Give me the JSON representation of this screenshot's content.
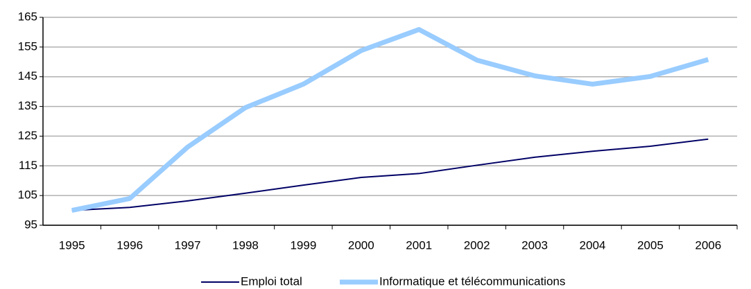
{
  "chart_data": {
    "type": "line",
    "categories": [
      "1995",
      "1996",
      "1997",
      "1998",
      "1999",
      "2000",
      "2001",
      "2002",
      "2003",
      "2004",
      "2005",
      "2006"
    ],
    "series": [
      {
        "name": "Emploi total",
        "color": "#000066",
        "values": [
          100,
          101,
          103.2,
          105.8,
          108.5,
          111.1,
          112.4,
          115.2,
          117.9,
          119.9,
          121.6,
          124.0
        ]
      },
      {
        "name": "Informatique et télécommunications",
        "color": "#99ccff",
        "values": [
          100,
          104,
          121.3,
          134.6,
          142.5,
          153.8,
          160.9,
          150.6,
          145.3,
          142.5,
          145.1,
          150.8
        ]
      }
    ],
    "ylim": [
      95,
      165
    ],
    "yticks": [
      95,
      105,
      115,
      125,
      135,
      145,
      155,
      165
    ],
    "grid": true,
    "legend": "bottom"
  }
}
